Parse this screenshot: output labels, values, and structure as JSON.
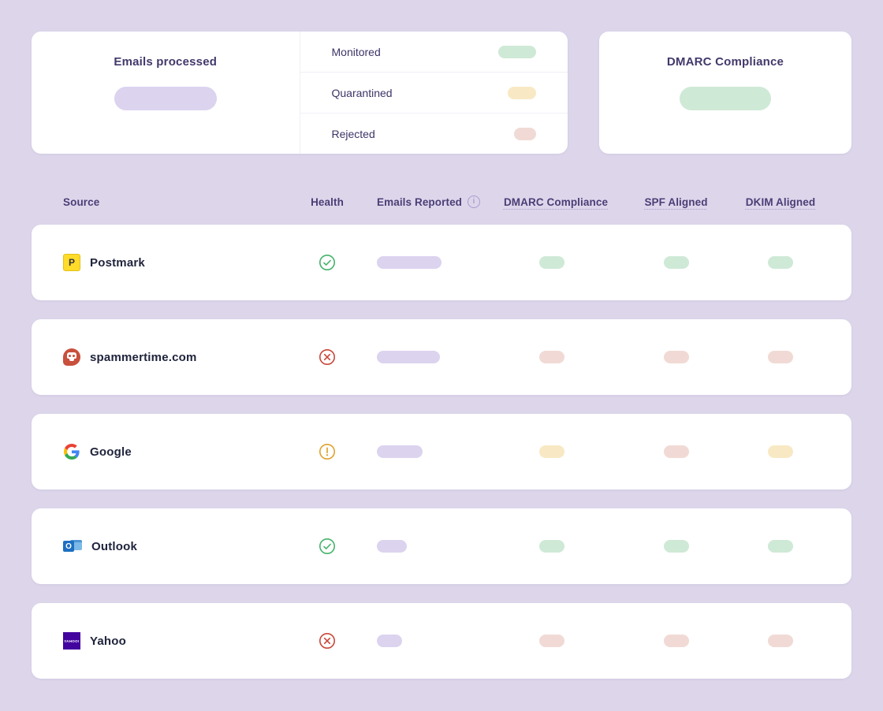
{
  "summary": {
    "emails_processed_title": "Emails processed",
    "breakdown": [
      {
        "label": "Monitored",
        "status": "monitored",
        "pill_width": 48
      },
      {
        "label": "Quarantined",
        "status": "quarantined",
        "pill_width": 36
      },
      {
        "label": "Rejected",
        "status": "rejected",
        "pill_width": 28
      }
    ],
    "dmarc_title": "DMARC Compliance"
  },
  "table": {
    "headers": [
      {
        "label": "Source"
      },
      {
        "label": "Health"
      },
      {
        "label": "Emails Reported",
        "info_icon": true
      },
      {
        "label": "DMARC Compliance",
        "underlined": true
      },
      {
        "label": "SPF Aligned",
        "underlined": true
      },
      {
        "label": "DKIM Aligned",
        "underlined": true
      }
    ],
    "rows": [
      {
        "source": "Postmark",
        "icon": "postmark-icon",
        "health": "pass",
        "emails_pill_width": 82,
        "dmarc": "pass",
        "spf": "pass",
        "dkim": "pass"
      },
      {
        "source": "spammertime.com",
        "icon": "spammertime-icon",
        "health": "fail",
        "emails_pill_width": 80,
        "dmarc": "fail",
        "spf": "fail",
        "dkim": "fail"
      },
      {
        "source": "Google",
        "icon": "google-icon",
        "health": "warn",
        "emails_pill_width": 58,
        "dmarc": "warn",
        "spf": "fail",
        "dkim": "warn"
      },
      {
        "source": "Outlook",
        "icon": "outlook-icon",
        "health": "pass",
        "emails_pill_width": 38,
        "dmarc": "pass",
        "spf": "pass",
        "dkim": "pass"
      },
      {
        "source": "Yahoo",
        "icon": "yahoo-icon",
        "health": "fail",
        "emails_pill_width": 32,
        "dmarc": "fail",
        "spf": "fail",
        "dkim": "fail"
      }
    ]
  },
  "colors": {
    "background": "#ddd6eb",
    "neutral_pill": "#dcd3ef",
    "pass": "#cfe9d7",
    "warn": "#f8e9c4",
    "fail": "#f1dad5",
    "monitored": "#cfe9d7",
    "quarantined": "#f8e9c4",
    "rejected": "#f1dad5",
    "health_pass": "#45b36b",
    "health_warn": "#dfa32e",
    "health_fail": "#c9473a"
  }
}
